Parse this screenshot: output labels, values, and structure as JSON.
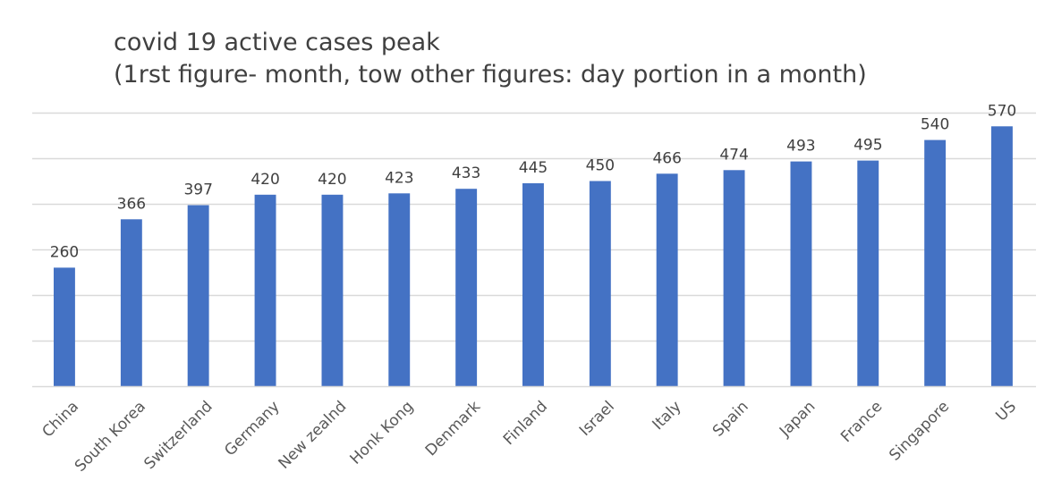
{
  "chart_data": {
    "type": "bar",
    "title": "covid 19 active cases peak",
    "subtitle": "(1rst figure- month, tow other figures: day portion in a month)",
    "categories": [
      "China",
      "South Korea",
      "Switzerland",
      "Germany",
      "New zealnd",
      "Honk Kong",
      "Denmark",
      "Finland",
      "Israel",
      "Italy",
      "Spain",
      "Japan",
      "France",
      "Singapore",
      "US"
    ],
    "series": [
      {
        "values": [
          260,
          366,
          397,
          420,
          420,
          423,
          433,
          445,
          450,
          466,
          474,
          493,
          495,
          540,
          570
        ],
        "color": "#4472C4"
      }
    ],
    "data_labels": true,
    "ylim": [
      0,
      600
    ],
    "y_gridlines": [
      0,
      100,
      200,
      300,
      400,
      500,
      600
    ],
    "y_tick_labels_shown": false,
    "grid": true,
    "legend": "none",
    "gridline_color": "#D9D9D9",
    "axis_line_color": "#D9D9D9"
  }
}
